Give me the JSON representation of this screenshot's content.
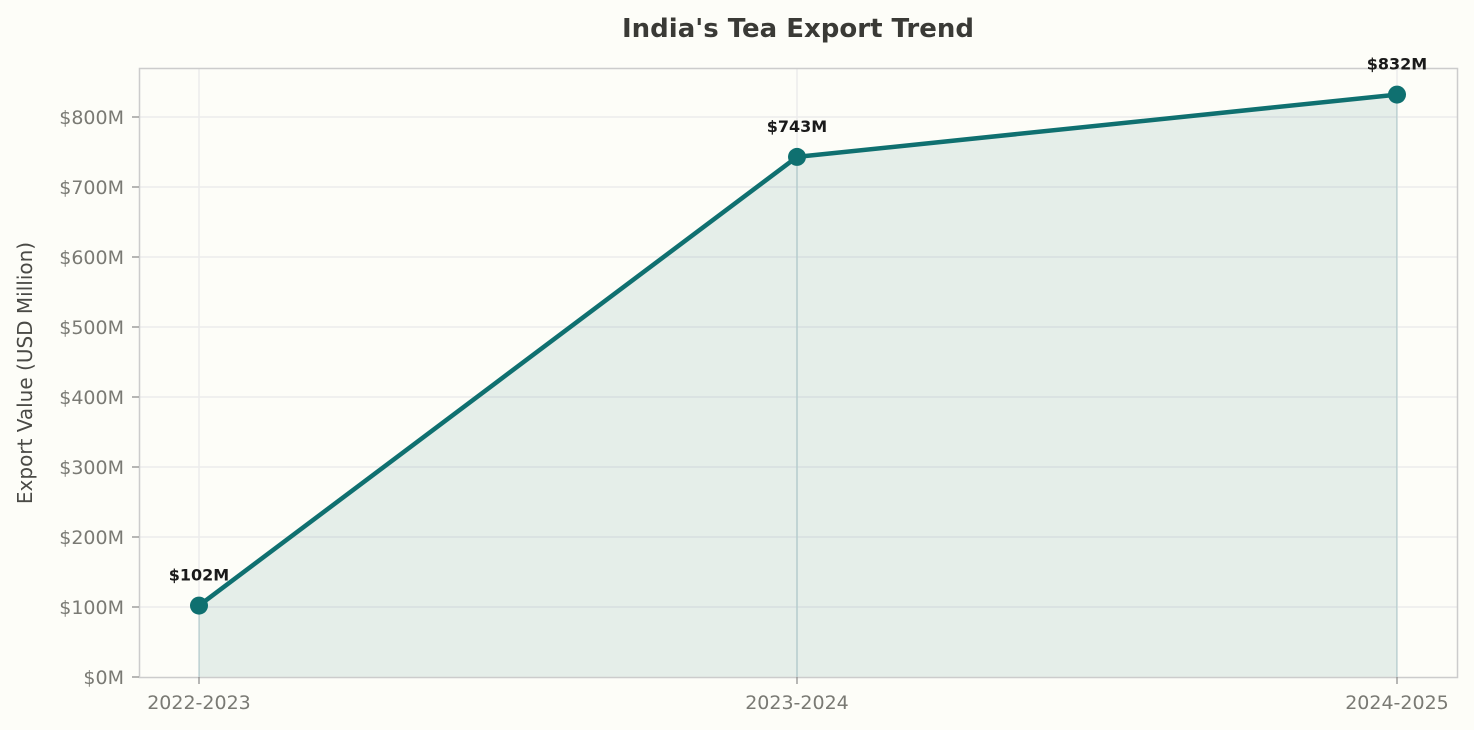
{
  "chart_data": {
    "type": "area",
    "title": "India's Tea Export Trend",
    "xlabel": "",
    "ylabel": "Export Value (USD Million)",
    "categories": [
      "2022-2023",
      "2023-2024",
      "2024-2025"
    ],
    "values": [
      102,
      743,
      832
    ],
    "data_labels": [
      "$102M",
      "$743M",
      "$832M"
    ],
    "series": [
      {
        "name": "Export Value",
        "values": [
          102,
          743,
          832
        ]
      }
    ],
    "ylim": [
      0,
      870
    ],
    "yticks": [
      0,
      100,
      200,
      300,
      400,
      500,
      600,
      700,
      800
    ],
    "ytick_labels": [
      "$0M",
      "$100M",
      "$200M",
      "$300M",
      "$400M",
      "$500M",
      "$600M",
      "$700M",
      "$800M"
    ],
    "grid": true,
    "legend": "none",
    "colors": {
      "line": "#0f7070",
      "fill": "#0f7070",
      "background": "#fdfdf8",
      "grid": "#ececec",
      "spine": "#cccccc"
    }
  }
}
